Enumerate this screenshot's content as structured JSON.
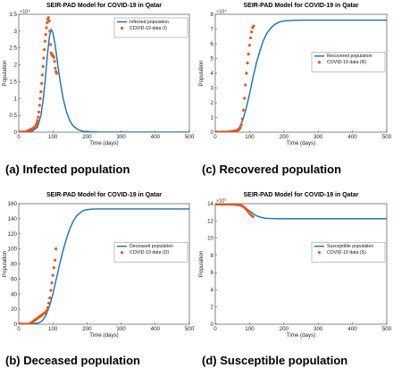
{
  "captions": [
    "(a) Infected population",
    "(c) Recovered population",
    "(b) Deceased population",
    "(d) Susceptible population"
  ],
  "colors": {
    "model": "#1a6fb5",
    "data": "#e4571e"
  },
  "chart_data": [
    {
      "type": "line",
      "title": "SEIR-PAD Model for COVID-19 in Qatar",
      "xlabel": "Time (days)",
      "ylabel": "Population",
      "xlim": [
        0,
        500
      ],
      "ylim": [
        0,
        3.5
      ],
      "x_ticks": [
        0,
        100,
        200,
        300,
        400,
        500
      ],
      "y_ticks": [
        0,
        0.5,
        1,
        1.5,
        2,
        2.5,
        3,
        3.5
      ],
      "y_exponent": "×10⁴",
      "legend_position": "top-right",
      "series": [
        {
          "name": "Infected population",
          "kind": "line",
          "x": [
            0,
            20,
            40,
            55,
            65,
            72,
            78,
            84,
            90,
            95,
            100,
            105,
            110,
            115,
            120,
            130,
            140,
            150,
            160,
            175,
            190,
            210,
            240,
            270,
            300,
            400,
            500
          ],
          "y": [
            0,
            0.005,
            0.03,
            0.15,
            0.5,
            1.0,
            1.6,
            2.3,
            2.85,
            3.05,
            2.95,
            2.7,
            2.35,
            1.95,
            1.6,
            1.0,
            0.6,
            0.33,
            0.18,
            0.07,
            0.025,
            0.01,
            0,
            0,
            0,
            0,
            0
          ]
        },
        {
          "name": "COVID-19 data (I)",
          "kind": "scatter",
          "x": [
            1,
            3,
            5,
            7,
            9,
            11,
            13,
            15,
            17,
            19,
            21,
            23,
            25,
            27,
            29,
            31,
            33,
            35,
            37,
            39,
            41,
            43,
            45,
            47,
            49,
            51,
            53,
            55,
            57,
            59,
            61,
            63,
            65,
            67,
            69,
            71,
            73,
            75,
            77,
            79,
            81,
            83,
            85,
            87,
            89,
            91,
            93,
            95,
            97,
            99,
            101,
            103,
            105,
            107,
            109,
            111
          ],
          "y": [
            0,
            0,
            0,
            0,
            0,
            0,
            0,
            0,
            0,
            0,
            0.01,
            0.02,
            0.03,
            0.04,
            0.05,
            0.06,
            0.07,
            0.08,
            0.09,
            0.1,
            0.11,
            0.12,
            0.13,
            0.15,
            0.18,
            0.22,
            0.28,
            0.35,
            0.45,
            0.6,
            0.8,
            1.0,
            1.2,
            1.45,
            1.7,
            1.95,
            2.2,
            2.45,
            2.7,
            2.9,
            3.1,
            3.25,
            3.35,
            3.4,
            3.3,
            3.0,
            2.6,
            2.35,
            2.3,
            2.28,
            2.26,
            2.22,
            2.1,
            1.9,
            1.8,
            1.75
          ]
        }
      ]
    },
    {
      "type": "line",
      "title": "SEIR-PAD Model for COVID-19 in Qatar",
      "xlabel": "Time (days)",
      "ylabel": "Population",
      "xlim": [
        0,
        500
      ],
      "ylim": [
        0,
        8
      ],
      "x_ticks": [
        0,
        100,
        200,
        300,
        400,
        500
      ],
      "y_ticks": [
        0,
        1,
        2,
        3,
        4,
        5,
        6,
        7,
        8
      ],
      "y_exponent": "×10⁴",
      "legend_position": "center-right",
      "series": [
        {
          "name": "Recovered population",
          "kind": "line",
          "x": [
            0,
            40,
            60,
            70,
            80,
            90,
            100,
            110,
            120,
            130,
            140,
            150,
            160,
            170,
            180,
            190,
            200,
            220,
            250,
            300,
            400,
            500
          ],
          "y": [
            0,
            0.02,
            0.1,
            0.3,
            0.8,
            1.6,
            2.6,
            3.7,
            4.7,
            5.5,
            6.2,
            6.7,
            7.0,
            7.25,
            7.4,
            7.5,
            7.55,
            7.58,
            7.6,
            7.6,
            7.6,
            7.6
          ]
        },
        {
          "name": "COVID-19 data (R)",
          "kind": "scatter",
          "x": [
            1,
            4,
            7,
            10,
            13,
            16,
            19,
            22,
            25,
            28,
            31,
            34,
            37,
            40,
            43,
            46,
            49,
            52,
            55,
            58,
            61,
            64,
            67,
            70,
            73,
            76,
            79,
            82,
            85,
            88,
            91,
            94,
            97,
            100,
            103,
            106,
            109,
            112
          ],
          "y": [
            0,
            0,
            0,
            0,
            0,
            0,
            0,
            0,
            0,
            0,
            0,
            0,
            0.01,
            0.02,
            0.03,
            0.04,
            0.05,
            0.06,
            0.07,
            0.08,
            0.1,
            0.12,
            0.15,
            0.2,
            0.3,
            0.5,
            0.9,
            1.5,
            2.3,
            3.2,
            4.0,
            4.7,
            5.3,
            5.9,
            6.4,
            6.8,
            7.1,
            7.2
          ]
        }
      ]
    },
    {
      "type": "line",
      "title": "SEIR-PAD Model for COVID-19 in Qatar",
      "xlabel": "Time (days)",
      "ylabel": "Population",
      "xlim": [
        0,
        500
      ],
      "ylim": [
        0,
        160
      ],
      "x_ticks": [
        0,
        100,
        200,
        300,
        400,
        500
      ],
      "y_ticks": [
        0,
        20,
        40,
        60,
        80,
        100,
        120,
        140,
        160
      ],
      "y_exponent": "",
      "legend_position": "center-right",
      "series": [
        {
          "name": "Deceased population",
          "kind": "line",
          "x": [
            0,
            40,
            60,
            70,
            80,
            90,
            100,
            110,
            120,
            130,
            140,
            150,
            160,
            170,
            180,
            190,
            200,
            220,
            250,
            300,
            400,
            500
          ],
          "y": [
            0,
            0.5,
            2,
            5,
            12,
            24,
            40,
            60,
            80,
            98,
            114,
            127,
            137,
            144,
            148,
            151,
            152,
            153,
            153,
            153,
            153,
            153
          ]
        },
        {
          "name": "COVID-19 data (D)",
          "kind": "scatter",
          "x": [
            1,
            4,
            7,
            10,
            13,
            16,
            19,
            22,
            25,
            28,
            31,
            34,
            37,
            40,
            43,
            46,
            49,
            52,
            55,
            58,
            61,
            64,
            67,
            70,
            73,
            76,
            79,
            82,
            85,
            88,
            91,
            94,
            97,
            100,
            103,
            106,
            109
          ],
          "y": [
            0,
            0,
            0,
            0,
            0,
            0,
            0,
            0,
            0,
            0,
            0,
            1,
            2,
            3,
            4,
            5,
            6,
            7,
            8,
            9,
            10,
            11,
            12,
            13,
            14,
            15,
            16,
            18,
            22,
            28,
            35,
            45,
            55,
            65,
            75,
            85,
            100
          ]
        }
      ]
    },
    {
      "type": "line",
      "title": "SEIR-PAD Model for COVID-19 in Qatar",
      "xlabel": "Time (days)",
      "ylabel": "Population",
      "xlim": [
        0,
        500
      ],
      "ylim": [
        0,
        14
      ],
      "x_ticks": [
        0,
        100,
        200,
        300,
        400,
        500
      ],
      "y_ticks": [
        0,
        2,
        4,
        6,
        8,
        10,
        12,
        14
      ],
      "y_exponent": "×10⁵",
      "legend_position": "center-right",
      "series": [
        {
          "name": "Susceptible population",
          "kind": "line",
          "x": [
            0,
            40,
            60,
            70,
            80,
            90,
            100,
            110,
            120,
            130,
            140,
            150,
            160,
            170,
            180,
            200,
            250,
            300,
            400,
            500
          ],
          "y": [
            14,
            14,
            13.95,
            13.85,
            13.7,
            13.45,
            13.15,
            12.85,
            12.6,
            12.45,
            12.35,
            12.3,
            12.28,
            12.27,
            12.26,
            12.25,
            12.25,
            12.25,
            12.25,
            12.25
          ]
        },
        {
          "name": "COVID-19 data (S)",
          "kind": "scatter",
          "x": [
            0,
            5,
            10,
            15,
            20,
            25,
            30,
            35,
            40,
            45,
            50,
            55,
            60,
            65,
            70,
            75,
            80,
            85,
            90,
            95,
            100,
            105,
            110
          ],
          "y": [
            13.95,
            13.95,
            13.95,
            13.95,
            13.95,
            13.95,
            13.95,
            13.95,
            13.95,
            13.94,
            13.93,
            13.92,
            13.9,
            13.88,
            13.85,
            13.8,
            13.7,
            13.55,
            13.35,
            13.1,
            12.85,
            12.65,
            12.5
          ]
        },
        {
          "name": "",
          "kind": "scatter",
          "x": [
            0
          ],
          "y": [
            0
          ]
        }
      ]
    }
  ]
}
